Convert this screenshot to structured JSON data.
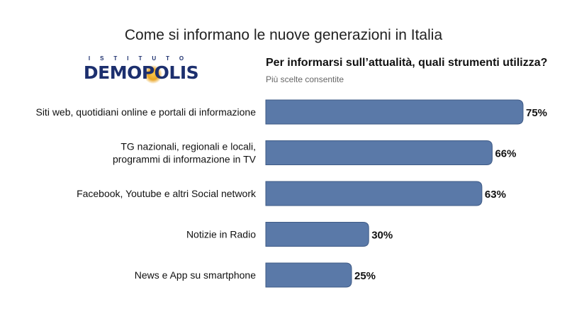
{
  "header": {
    "title": "Come si informano le nuove generazioni in Italia",
    "question": "Per informarsi sull’attualità, quali strumenti utilizza?",
    "note": "Più scelte consentite"
  },
  "logo": {
    "top_text": "ISTITUTO",
    "main_text": "DEMOPOLIS"
  },
  "colors": {
    "bar": "#5a79a8",
    "bar_stroke": "#3f5b86"
  },
  "chart_data": {
    "type": "bar",
    "orientation": "horizontal",
    "categories": [
      [
        "Siti web, quotidiani online e portali di informazione"
      ],
      [
        "TG nazionali, regionali e locali,",
        "programmi di informazione in TV"
      ],
      [
        "Facebook, Youtube e altri Social network"
      ],
      [
        "Notizie in Radio"
      ],
      [
        "News e App su smartphone"
      ]
    ],
    "values": [
      75,
      66,
      63,
      30,
      25
    ],
    "value_labels": [
      "75%",
      "66%",
      "63%",
      "30%",
      "25%"
    ],
    "xlim": [
      0,
      100
    ],
    "grid": false,
    "legend": "none"
  }
}
